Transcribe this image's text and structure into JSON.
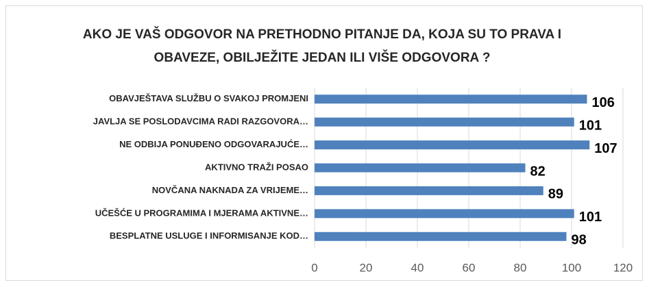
{
  "chart_data": {
    "type": "bar",
    "orientation": "horizontal",
    "title": "AKO JE VAŠ ODGOVOR NA PRETHODNO PITANJE DA, KOJA SU TO PRAVA I OBAVEZE, OBILJEŽITE JEDAN ILI VIŠE ODGOVORA ?",
    "categories": [
      "OBAVJEŠTAVA SLUŽBU O SVAKOJ PROMJENI",
      "JAVLJA SE POSLODAVCIMA RADI RAZGOVORA…",
      "NE ODBIJA PONUĐENO ODGOVARAJUĆE…",
      "AKTIVNO TRAŽI POSAO",
      "NOVČANA NAKNADA ZA VRIJEME…",
      "UČEŠĆE U PROGRAMIMA I MJERAMA AKTIVNE…",
      "BESPLATNE USLUGE I INFORMISANJE KOD…"
    ],
    "values": [
      106,
      101,
      107,
      82,
      89,
      101,
      98
    ],
    "color": "#4f81bd",
    "xlim": [
      0,
      120
    ],
    "xticks": [
      0,
      20,
      40,
      60,
      80,
      100,
      120
    ],
    "grid": true
  }
}
